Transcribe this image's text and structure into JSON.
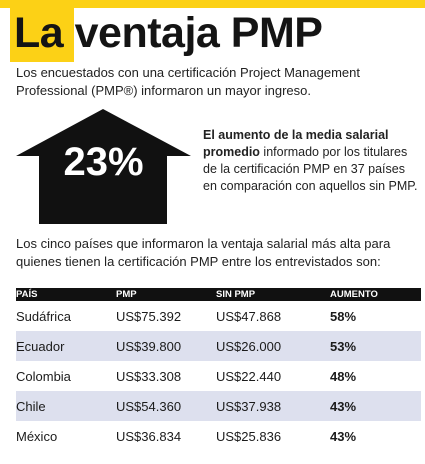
{
  "title": "La ventaja PMP",
  "intro": "Los encuestados con una certificación Project Management Professional (PMP®) informaron un mayor ingreso.",
  "highlight": {
    "percent": "23%",
    "text_bold": "El aumento de la media salarial promedio",
    "text_rest": " informado por los titulares de la certificación PMP en 37 países en comparación con aquellos sin PMP."
  },
  "countries_intro": "Los cinco países que informaron la ventaja salarial más alta para quienes tienen la certificación PMP entre los entrevistados son:",
  "table": {
    "headers": [
      "PAÍS",
      "PMP",
      "SIN PMP",
      "AUMENTO"
    ],
    "rows": [
      [
        "Sudáfrica",
        "US$75.392",
        "US$47.868",
        "58%"
      ],
      [
        "Ecuador",
        "US$39.800",
        "US$26.000",
        "53%"
      ],
      [
        "Colombia",
        "US$33.308",
        "US$22.440",
        "48%"
      ],
      [
        "Chile",
        "US$54.360",
        "US$37.938",
        "43%"
      ],
      [
        "México",
        "US$36.834",
        "US$25.836",
        "43%"
      ]
    ]
  },
  "colors": {
    "accent_yellow": "#fcd116",
    "dark": "#111111",
    "row_alt": "#dde0ee"
  }
}
